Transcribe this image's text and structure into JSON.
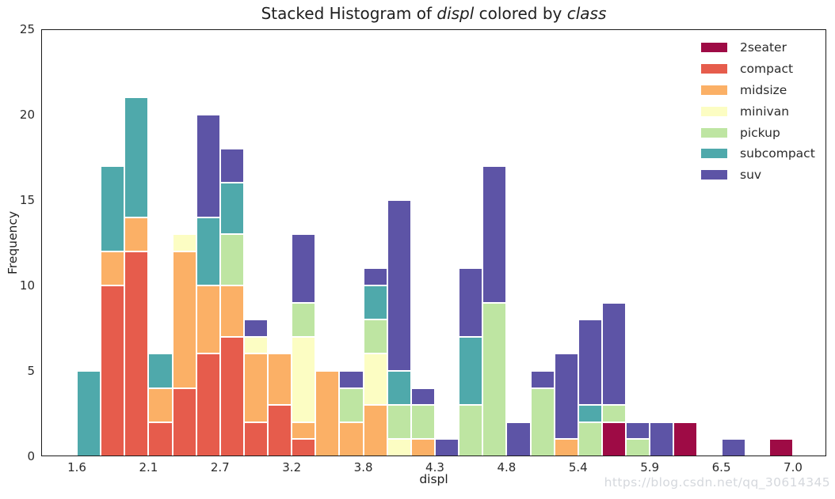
{
  "title": {
    "part1": "Stacked Histogram of ",
    "var1": "displ",
    "part2": " colored by ",
    "var2": "class"
  },
  "watermark": "https://blog.csdn.net/qq_30614345",
  "chart_data": {
    "type": "bar",
    "subtype": "stacked-histogram",
    "title": "Stacked Histogram of displ colored by class",
    "xlabel": "displ",
    "ylabel": "Frequency",
    "grid": false,
    "legend_position": "upper-right-inside",
    "ylim": [
      0,
      25
    ],
    "ytick_labels": [
      "0",
      "5",
      "10",
      "15",
      "20",
      "25"
    ],
    "ytick_values": [
      0,
      5,
      10,
      15,
      20,
      25
    ],
    "xtick_labels": [
      "1.6",
      "2.1",
      "2.7",
      "3.2",
      "3.8",
      "4.3",
      "4.8",
      "5.4",
      "5.9",
      "6.5",
      "7.0"
    ],
    "xtick_step": 0.54,
    "x_start": 1.6,
    "x_end": 7.0,
    "bin_width": 0.18,
    "classes": [
      {
        "name": "2seater",
        "color": "#9E0B45"
      },
      {
        "name": "compact",
        "color": "#E65C4C"
      },
      {
        "name": "midsize",
        "color": "#FBB066"
      },
      {
        "name": "minivan",
        "color": "#FCFDC3"
      },
      {
        "name": "pickup",
        "color": "#BEE5A2"
      },
      {
        "name": "subcompact",
        "color": "#4FA9AB"
      },
      {
        "name": "suv",
        "color": "#5D54A6"
      }
    ],
    "bins": [
      {
        "x0": 1.6,
        "x1": 1.78,
        "counts": {
          "subcompact": 5
        }
      },
      {
        "x0": 1.78,
        "x1": 1.96,
        "counts": {
          "compact": 10,
          "midsize": 2,
          "subcompact": 5
        }
      },
      {
        "x0": 1.96,
        "x1": 2.14,
        "counts": {
          "compact": 12,
          "midsize": 2,
          "subcompact": 7
        }
      },
      {
        "x0": 2.14,
        "x1": 2.32,
        "counts": {
          "compact": 2,
          "midsize": 2,
          "subcompact": 2
        }
      },
      {
        "x0": 2.32,
        "x1": 2.5,
        "counts": {
          "compact": 4,
          "midsize": 8,
          "minivan": 1
        }
      },
      {
        "x0": 2.5,
        "x1": 2.68,
        "counts": {
          "compact": 6,
          "midsize": 4,
          "subcompact": 4,
          "suv": 6
        }
      },
      {
        "x0": 2.68,
        "x1": 2.86,
        "counts": {
          "compact": 7,
          "midsize": 3,
          "pickup": 3,
          "subcompact": 3,
          "suv": 2
        }
      },
      {
        "x0": 2.86,
        "x1": 3.04,
        "counts": {
          "compact": 2,
          "midsize": 4,
          "minivan": 1,
          "suv": 1
        }
      },
      {
        "x0": 3.04,
        "x1": 3.22,
        "counts": {
          "compact": 3,
          "midsize": 3
        }
      },
      {
        "x0": 3.22,
        "x1": 3.4,
        "counts": {
          "compact": 1,
          "midsize": 1,
          "minivan": 5,
          "pickup": 2,
          "suv": 4
        }
      },
      {
        "x0": 3.4,
        "x1": 3.58,
        "counts": {
          "midsize": 5
        }
      },
      {
        "x0": 3.58,
        "x1": 3.76,
        "counts": {
          "midsize": 2,
          "pickup": 2,
          "suv": 1
        }
      },
      {
        "x0": 3.76,
        "x1": 3.94,
        "counts": {
          "midsize": 3,
          "minivan": 3,
          "pickup": 2,
          "subcompact": 2,
          "suv": 1
        }
      },
      {
        "x0": 3.94,
        "x1": 4.12,
        "counts": {
          "minivan": 1,
          "pickup": 2,
          "subcompact": 2,
          "suv": 10
        }
      },
      {
        "x0": 4.12,
        "x1": 4.3,
        "counts": {
          "midsize": 1,
          "pickup": 2,
          "suv": 1
        }
      },
      {
        "x0": 4.3,
        "x1": 4.48,
        "counts": {
          "suv": 1
        }
      },
      {
        "x0": 4.48,
        "x1": 4.66,
        "counts": {
          "pickup": 3,
          "subcompact": 4,
          "suv": 4
        }
      },
      {
        "x0": 4.66,
        "x1": 4.84,
        "counts": {
          "pickup": 9,
          "suv": 8
        }
      },
      {
        "x0": 4.84,
        "x1": 5.02,
        "counts": {
          "suv": 2
        }
      },
      {
        "x0": 5.02,
        "x1": 5.2,
        "counts": {
          "pickup": 4,
          "suv": 1
        }
      },
      {
        "x0": 5.2,
        "x1": 5.38,
        "counts": {
          "midsize": 1,
          "suv": 5
        }
      },
      {
        "x0": 5.38,
        "x1": 5.56,
        "counts": {
          "pickup": 2,
          "subcompact": 1,
          "suv": 5
        }
      },
      {
        "x0": 5.56,
        "x1": 5.74,
        "counts": {
          "2seater": 2,
          "pickup": 1,
          "suv": 6
        }
      },
      {
        "x0": 5.74,
        "x1": 5.92,
        "counts": {
          "pickup": 1,
          "suv": 1
        }
      },
      {
        "x0": 5.92,
        "x1": 6.1,
        "counts": {
          "suv": 2
        }
      },
      {
        "x0": 6.1,
        "x1": 6.28,
        "counts": {
          "2seater": 2
        }
      },
      {
        "x0": 6.46,
        "x1": 6.64,
        "counts": {
          "suv": 1
        }
      },
      {
        "x0": 6.82,
        "x1": 7.0,
        "counts": {
          "2seater": 1
        }
      }
    ]
  }
}
